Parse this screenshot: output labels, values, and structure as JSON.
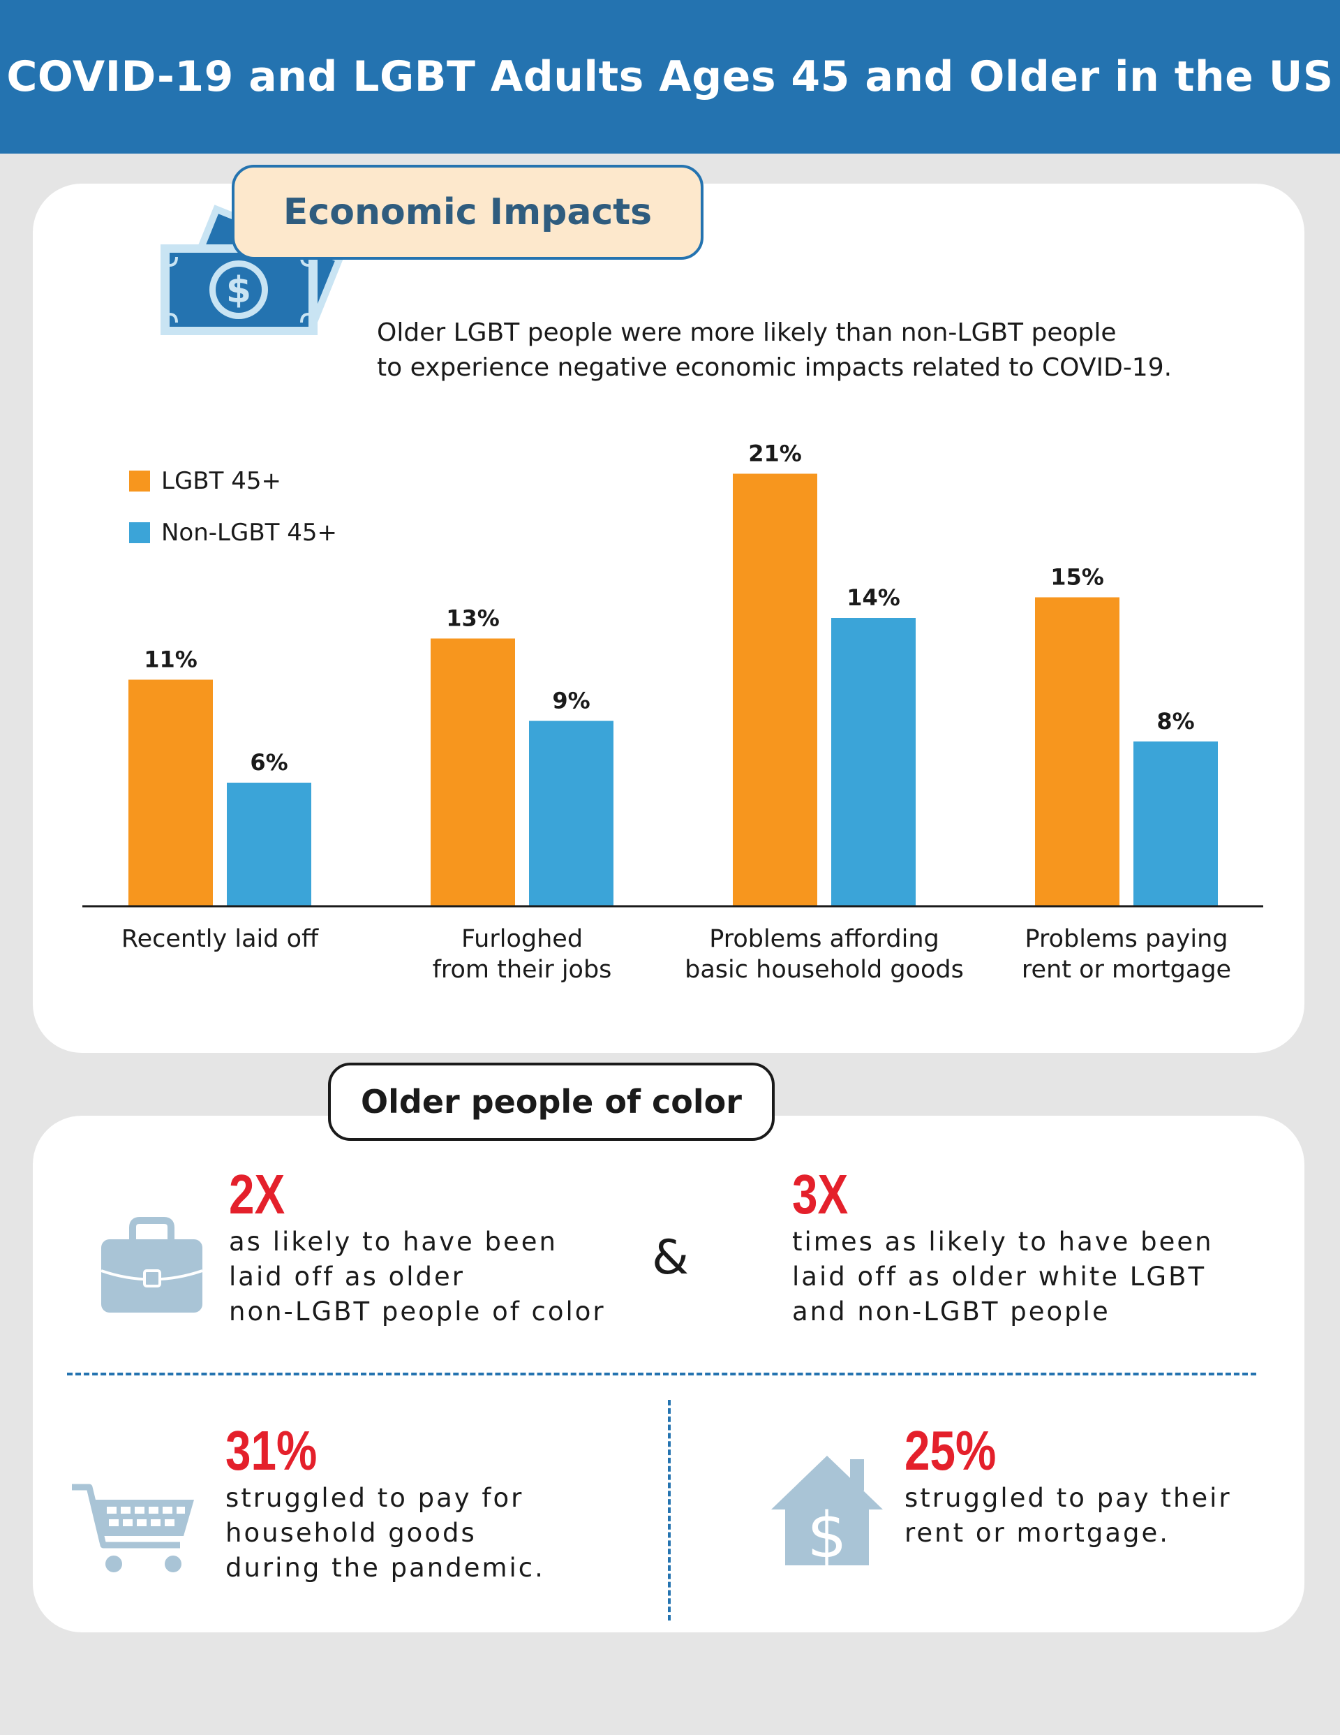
{
  "header": {
    "title": "COVID-19 and LGBT Adults Ages 45 and Older in the US"
  },
  "economic": {
    "tab_label": "Economic Impacts",
    "intro_line1": "Older LGBT people were more likely than non-LGBT people",
    "intro_line2": "to experience negative economic impacts related to COVID-19."
  },
  "colors": {
    "header_blue": "#2473b0",
    "lgbt_orange": "#f7961e",
    "nonlgbt_blue": "#3ba4d8",
    "stat_red": "#e4202b",
    "icon_gray_blue": "#a9c4d6"
  },
  "chart_data": {
    "type": "bar",
    "categories": [
      [
        "Recently laid off"
      ],
      [
        "Furloghed",
        "from their jobs"
      ],
      [
        "Problems affording",
        "basic household goods"
      ],
      [
        "Problems paying",
        "rent or mortgage"
      ]
    ],
    "series": [
      {
        "name": "LGBT 45+",
        "color": "#f7961e",
        "values": [
          11,
          13,
          21,
          15
        ],
        "labels": [
          "11%",
          "13%",
          "21%",
          "15%"
        ]
      },
      {
        "name": "Non-LGBT 45+",
        "color": "#3ba4d8",
        "values": [
          6,
          9,
          14,
          8
        ],
        "labels": [
          "6%",
          "9%",
          "14%",
          "8%"
        ]
      }
    ],
    "legend_position": "top-left",
    "grid": false,
    "unit": "%"
  },
  "poc": {
    "tab_label": "Older people of color",
    "amp": "&",
    "stats": [
      {
        "value": "2X",
        "text": "as likely to have been\nlaid off as older\nnon-LGBT people of color",
        "icon": "briefcase-icon"
      },
      {
        "value": "3X",
        "text": "times as likely to have been\nlaid off as older white LGBT\nand non-LGBT people",
        "icon": ""
      },
      {
        "value": "31%",
        "text": "struggled to pay for\nhousehold goods\nduring the pandemic.",
        "icon": "shopping-cart-icon"
      },
      {
        "value": "25%",
        "text": "struggled to pay their\nrent or mortgage.",
        "icon": "house-dollar-icon"
      }
    ]
  }
}
